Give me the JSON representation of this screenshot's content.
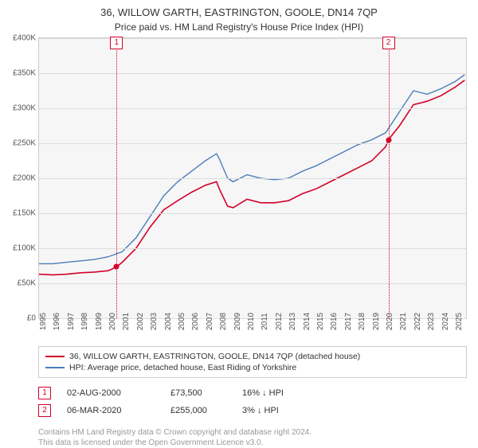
{
  "title": "36, WILLOW GARTH, EASTRINGTON, GOOLE, DN14 7QP",
  "subtitle": "Price paid vs. HM Land Registry's House Price Index (HPI)",
  "chart": {
    "background": "#f6f6f6",
    "grid_color": "#dddddd",
    "border_color": "#cccccc",
    "ylim": [
      0,
      400000
    ],
    "ytick_step": 50000,
    "yticks": [
      {
        "v": 0,
        "label": "£0"
      },
      {
        "v": 50000,
        "label": "£50K"
      },
      {
        "v": 100000,
        "label": "£100K"
      },
      {
        "v": 150000,
        "label": "£150K"
      },
      {
        "v": 200000,
        "label": "£200K"
      },
      {
        "v": 250000,
        "label": "£250K"
      },
      {
        "v": 300000,
        "label": "£300K"
      },
      {
        "v": 350000,
        "label": "£350K"
      },
      {
        "v": 400000,
        "label": "£400K"
      }
    ],
    "xlim": [
      1995,
      2025.8
    ],
    "xticks": [
      1995,
      1996,
      1997,
      1998,
      1999,
      2000,
      2001,
      2002,
      2003,
      2004,
      2005,
      2006,
      2007,
      2008,
      2009,
      2010,
      2011,
      2012,
      2013,
      2014,
      2015,
      2016,
      2017,
      2018,
      2019,
      2020,
      2021,
      2022,
      2023,
      2024,
      2025
    ],
    "series": [
      {
        "name": "property",
        "label": "36, WILLOW GARTH, EASTRINGTON, GOOLE, DN14 7QP (detached house)",
        "color": "#d4002a",
        "width": 1.6,
        "points": [
          [
            1995,
            63000
          ],
          [
            1996,
            62000
          ],
          [
            1997,
            63000
          ],
          [
            1998,
            65000
          ],
          [
            1999,
            66000
          ],
          [
            2000,
            68000
          ],
          [
            2000.6,
            73500
          ],
          [
            2001,
            80000
          ],
          [
            2002,
            100000
          ],
          [
            2003,
            130000
          ],
          [
            2004,
            155000
          ],
          [
            2005,
            168000
          ],
          [
            2006,
            180000
          ],
          [
            2007,
            190000
          ],
          [
            2007.8,
            195000
          ],
          [
            2008,
            185000
          ],
          [
            2008.6,
            160000
          ],
          [
            2009,
            158000
          ],
          [
            2010,
            170000
          ],
          [
            2011,
            165000
          ],
          [
            2012,
            165000
          ],
          [
            2013,
            168000
          ],
          [
            2014,
            178000
          ],
          [
            2015,
            185000
          ],
          [
            2016,
            195000
          ],
          [
            2017,
            205000
          ],
          [
            2018,
            215000
          ],
          [
            2019,
            225000
          ],
          [
            2020,
            245000
          ],
          [
            2020.2,
            255000
          ],
          [
            2021,
            275000
          ],
          [
            2022,
            305000
          ],
          [
            2023,
            310000
          ],
          [
            2024,
            318000
          ],
          [
            2025,
            330000
          ],
          [
            2025.7,
            340000
          ]
        ]
      },
      {
        "name": "hpi",
        "label": "HPI: Average price, detached house, East Riding of Yorkshire",
        "color": "#4a7ebb",
        "width": 1.4,
        "points": [
          [
            1995,
            78000
          ],
          [
            1996,
            78000
          ],
          [
            1997,
            80000
          ],
          [
            1998,
            82000
          ],
          [
            1999,
            84000
          ],
          [
            2000,
            88000
          ],
          [
            2001,
            95000
          ],
          [
            2002,
            115000
          ],
          [
            2003,
            145000
          ],
          [
            2004,
            175000
          ],
          [
            2005,
            195000
          ],
          [
            2006,
            210000
          ],
          [
            2007,
            225000
          ],
          [
            2007.8,
            235000
          ],
          [
            2008,
            228000
          ],
          [
            2008.6,
            200000
          ],
          [
            2009,
            195000
          ],
          [
            2010,
            205000
          ],
          [
            2011,
            200000
          ],
          [
            2012,
            198000
          ],
          [
            2013,
            200000
          ],
          [
            2014,
            210000
          ],
          [
            2015,
            218000
          ],
          [
            2016,
            228000
          ],
          [
            2017,
            238000
          ],
          [
            2018,
            248000
          ],
          [
            2019,
            255000
          ],
          [
            2020,
            265000
          ],
          [
            2021,
            295000
          ],
          [
            2022,
            325000
          ],
          [
            2023,
            320000
          ],
          [
            2024,
            328000
          ],
          [
            2025,
            338000
          ],
          [
            2025.7,
            348000
          ]
        ]
      }
    ],
    "sale_markers": [
      {
        "n": "1",
        "x": 2000.6,
        "y": 73500,
        "color": "#d4002a"
      },
      {
        "n": "2",
        "x": 2020.2,
        "y": 255000,
        "color": "#d4002a"
      }
    ]
  },
  "legend": {
    "series": [
      {
        "color": "#d4002a",
        "label": "36, WILLOW GARTH, EASTRINGTON, GOOLE, DN14 7QP (detached house)"
      },
      {
        "color": "#4a7ebb",
        "label": "HPI: Average price, detached house, East Riding of Yorkshire"
      }
    ]
  },
  "sales": [
    {
      "n": "1",
      "date": "02-AUG-2000",
      "price": "£73,500",
      "delta": "16% ↓ HPI",
      "color": "#d4002a"
    },
    {
      "n": "2",
      "date": "06-MAR-2020",
      "price": "£255,000",
      "delta": "3% ↓ HPI",
      "color": "#d4002a"
    }
  ],
  "footer": {
    "line1": "Contains HM Land Registry data © Crown copyright and database right 2024.",
    "line2": "This data is licensed under the Open Government Licence v3.0."
  }
}
